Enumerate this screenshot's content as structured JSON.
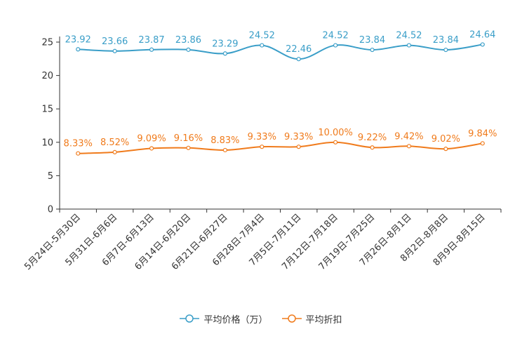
{
  "chart_data": {
    "type": "line",
    "categories": [
      "5月24日-5月30日",
      "5月31日-6月6日",
      "6月7日-6月13日",
      "6月14日-6月20日",
      "6月21日-6月27日",
      "6月28日-7月4日",
      "7月5日-7月11日",
      "7月12日-7月18日",
      "7月19日-7月25日",
      "7月26日-8月1日",
      "8月2日-8月8日",
      "8月9日-8月15日"
    ],
    "ylim": [
      0,
      25
    ],
    "yticks": [
      0,
      5,
      10,
      15,
      20,
      25
    ],
    "series": [
      {
        "name": "平均价格（万）",
        "color": "#3a9ec8",
        "values": [
          23.92,
          23.66,
          23.87,
          23.86,
          23.29,
          24.52,
          22.46,
          24.52,
          23.84,
          24.52,
          23.84,
          24.64
        ],
        "labels": [
          "23.92",
          "23.66",
          "23.87",
          "23.86",
          "23.29",
          "24.52",
          "22.46",
          "24.52",
          "23.84",
          "24.52",
          "23.84",
          "24.64"
        ]
      },
      {
        "name": "平均折扣",
        "color": "#f07b1c",
        "values": [
          8.33,
          8.52,
          9.09,
          9.16,
          8.83,
          9.33,
          9.33,
          10.0,
          9.22,
          9.42,
          9.02,
          9.84
        ],
        "labels": [
          "8.33%",
          "8.52%",
          "9.09%",
          "9.16%",
          "8.83%",
          "9.33%",
          "9.33%",
          "10.00%",
          "9.22%",
          "9.42%",
          "9.02%",
          "9.84%"
        ]
      }
    ],
    "legend_position": "bottom",
    "title": "",
    "xlabel": "",
    "ylabel": ""
  }
}
